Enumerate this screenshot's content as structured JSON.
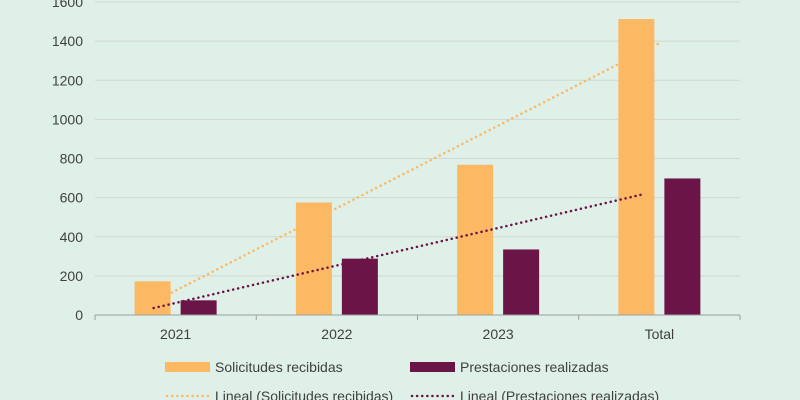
{
  "colors": {
    "background": "#dff0e8",
    "solicitudes": "#fdb863",
    "prestaciones": "#6b1447",
    "grid": "#cfd8d3",
    "axis": "#9e9e9e",
    "text": "#404040"
  },
  "chart_data": {
    "type": "bar",
    "title": "",
    "xlabel": "",
    "ylabel": "",
    "categories": [
      "2021",
      "2022",
      "2023",
      "Total"
    ],
    "series": [
      {
        "name": "Solicitudes recibidas",
        "values": [
          172,
          575,
          768,
          1513
        ],
        "color": "#fdb863"
      },
      {
        "name": "Prestaciones realizadas",
        "values": [
          75,
          288,
          335,
          698
        ],
        "color": "#6b1447"
      }
    ],
    "trendlines": [
      {
        "name": "Lineal (Solicitudes recibidas)",
        "series": "Solicitudes recibidas",
        "type": "linear",
        "style": "dotted",
        "color": "#fdb863"
      },
      {
        "name": "Lineal (Prestaciones realizadas)",
        "series": "Prestaciones realizadas",
        "type": "linear",
        "style": "dotted",
        "color": "#6b1447"
      }
    ],
    "ylim": [
      0,
      1600
    ],
    "yticks": [
      0,
      200,
      400,
      600,
      800,
      1000,
      1200,
      1400,
      1600
    ],
    "grid": true,
    "legend_position": "bottom"
  }
}
